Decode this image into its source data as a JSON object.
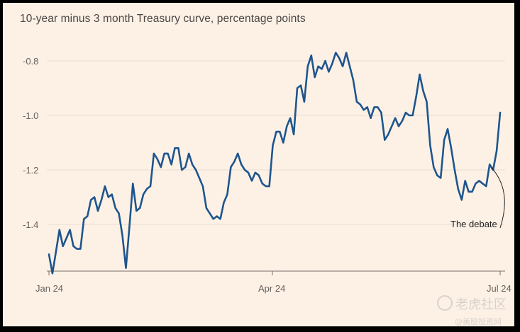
{
  "chart_data": {
    "type": "line",
    "title": "10-year minus 3 month Treasury curve, percentage points",
    "xlabel": "",
    "ylabel": "",
    "x_ticks": [
      "Jan 24",
      "Apr 24",
      "Jul 24"
    ],
    "y_ticks": [
      -0.8,
      -1.0,
      -1.2,
      -1.4
    ],
    "ylim": [
      -1.6,
      -0.72
    ],
    "grid": "horizontal",
    "line_color": "#1e558d",
    "annotation": {
      "text": "The debate"
    },
    "series": [
      {
        "values": [
          -1.51,
          -1.58,
          -1.5,
          -1.42,
          -1.48,
          -1.45,
          -1.42,
          -1.48,
          -1.49,
          -1.49,
          -1.38,
          -1.37,
          -1.31,
          -1.3,
          -1.35,
          -1.31,
          -1.26,
          -1.3,
          -1.29,
          -1.34,
          -1.36,
          -1.44,
          -1.56,
          -1.41,
          -1.25,
          -1.35,
          -1.34,
          -1.29,
          -1.27,
          -1.26,
          -1.14,
          -1.16,
          -1.19,
          -1.14,
          -1.14,
          -1.18,
          -1.12,
          -1.12,
          -1.2,
          -1.19,
          -1.14,
          -1.18,
          -1.2,
          -1.23,
          -1.26,
          -1.34,
          -1.36,
          -1.38,
          -1.37,
          -1.38,
          -1.32,
          -1.29,
          -1.19,
          -1.17,
          -1.14,
          -1.18,
          -1.2,
          -1.21,
          -1.24,
          -1.21,
          -1.22,
          -1.25,
          -1.26,
          -1.26,
          -1.11,
          -1.06,
          -1.06,
          -1.1,
          -1.04,
          -1.01,
          -1.07,
          -0.9,
          -0.89,
          -0.95,
          -0.82,
          -0.78,
          -0.86,
          -0.82,
          -0.83,
          -0.8,
          -0.84,
          -0.81,
          -0.77,
          -0.79,
          -0.82,
          -0.77,
          -0.82,
          -0.87,
          -0.95,
          -0.96,
          -0.98,
          -0.97,
          -1.01,
          -0.97,
          -0.97,
          -0.99,
          -1.09,
          -1.07,
          -1.04,
          -1.01,
          -1.04,
          -1.02,
          -0.99,
          -1.0,
          -1.0,
          -0.93,
          -0.85,
          -0.91,
          -0.95,
          -1.11,
          -1.19,
          -1.22,
          -1.23,
          -1.09,
          -1.05,
          -1.12,
          -1.2,
          -1.27,
          -1.31,
          -1.24,
          -1.28,
          -1.28,
          -1.25,
          -1.24,
          -1.25,
          -1.26,
          -1.18,
          -1.2,
          -1.13,
          -0.99
        ]
      }
    ]
  },
  "watermark": {
    "brand": "老虎社区",
    "handle": "@美股投资网"
  }
}
